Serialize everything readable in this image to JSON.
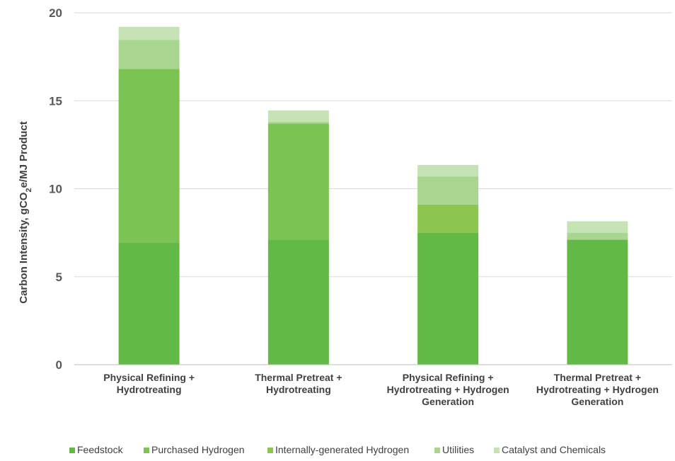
{
  "chart_data": {
    "type": "bar",
    "stacked": true,
    "title": "",
    "xlabel": "",
    "ylabel": "Carbon Intensity, gCO",
    "ylabel_sub": "2",
    "ylabel_suffix": "e/MJ Product",
    "ylim": [
      0,
      20
    ],
    "yticks": [
      0,
      5,
      10,
      15,
      20
    ],
    "grid": true,
    "legend_position": "bottom",
    "categories": [
      [
        "Physical Refining +",
        "Hydrotreating"
      ],
      [
        "Thermal Pretreat +",
        "Hydrotreating"
      ],
      [
        "Physical Refining +",
        "Hydrotreating + Hydrogen",
        "Generation"
      ],
      [
        "Thermal Pretreat +",
        "Hydrotreating + Hydrogen",
        "Generation"
      ]
    ],
    "series": [
      {
        "name": "Feedstock",
        "color": "#63b946",
        "values": [
          6.95,
          7.1,
          7.5,
          7.1
        ]
      },
      {
        "name": "Purchased Hydrogen",
        "color": "#7bc352",
        "values": [
          9.85,
          6.6,
          0,
          0
        ]
      },
      {
        "name": "Internally-generated Hydrogen",
        "color": "#8dc64f",
        "values": [
          0,
          0,
          1.6,
          0
        ]
      },
      {
        "name": "Utilities",
        "color": "#a8d68e",
        "values": [
          1.65,
          0.1,
          1.6,
          0.4
        ]
      },
      {
        "name": "Catalyst and Chemicals",
        "color": "#c6e3b6",
        "values": [
          0.75,
          0.65,
          0.65,
          0.65
        ]
      }
    ]
  }
}
